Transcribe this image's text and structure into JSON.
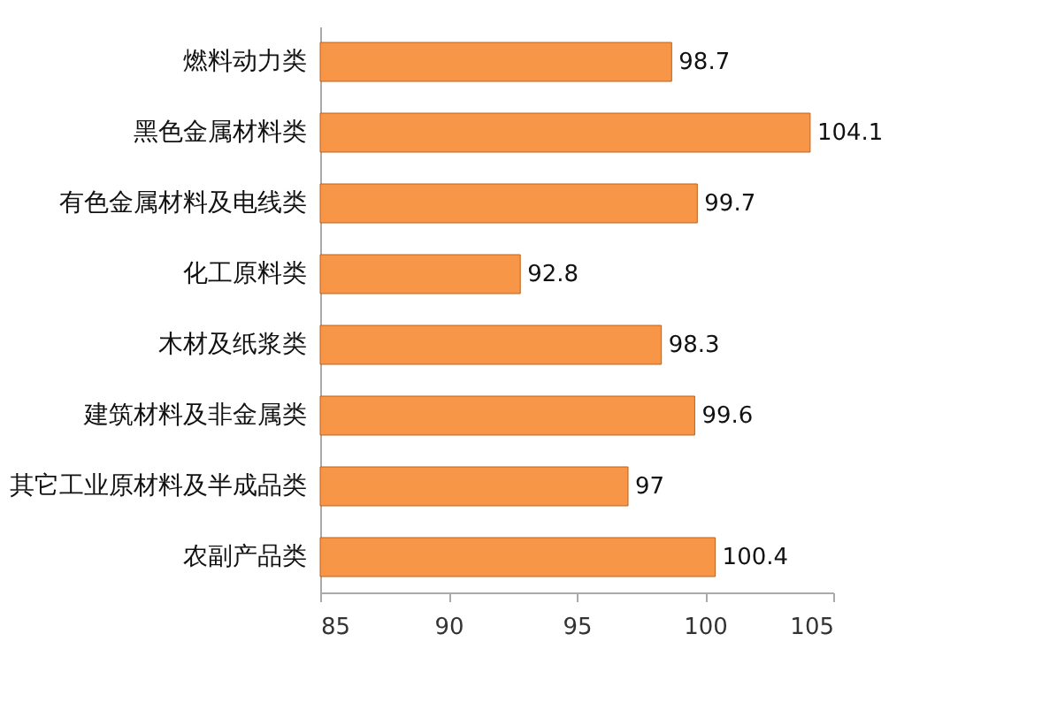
{
  "chart_data": {
    "type": "bar",
    "orientation": "horizontal",
    "categories": [
      "燃料动力类",
      "黑色金属材料类",
      "有色金属材料及电线类",
      "化工原料类",
      "木材及纸浆类",
      "建筑材料及非金属类",
      "其它工业原材料及半成品类",
      "农副产品类"
    ],
    "values": [
      98.7,
      104.1,
      99.7,
      92.8,
      98.3,
      99.6,
      97,
      100.4
    ],
    "color": "#f79646",
    "xlim": [
      85,
      105
    ],
    "xticks": [
      85,
      90,
      95,
      100,
      105
    ],
    "data_labels": true
  }
}
